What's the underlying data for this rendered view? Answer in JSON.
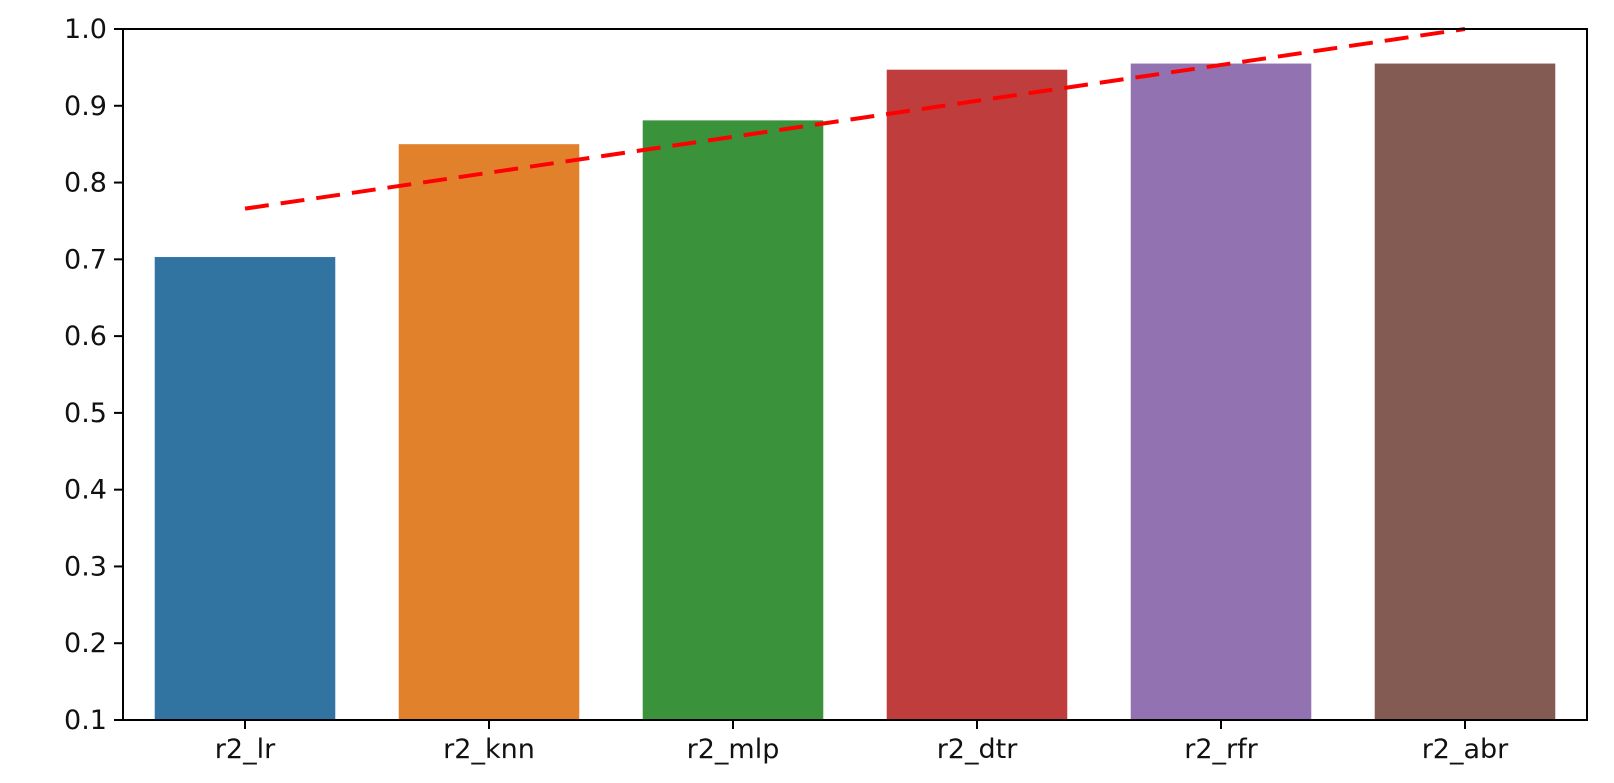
{
  "chart_data": {
    "type": "bar",
    "title": "",
    "xlabel": "",
    "ylabel": "",
    "categories": [
      "r2_lr",
      "r2_knn",
      "r2_mlp",
      "r2_dtr",
      "r2_rfr",
      "r2_abr"
    ],
    "values": [
      0.703,
      0.85,
      0.881,
      0.947,
      0.955,
      0.955
    ],
    "colors": [
      "#3274a1",
      "#e1812c",
      "#3a923a",
      "#c03d3e",
      "#9372b2",
      "#845b53"
    ],
    "ylim": [
      0.1,
      1.0
    ],
    "yticks": [
      "0.1",
      "0.2",
      "0.3",
      "0.4",
      "0.5",
      "0.6",
      "0.7",
      "0.8",
      "0.9",
      "1.0"
    ],
    "grid": false,
    "trend_line": {
      "style": "dashed",
      "color": "#ff0000",
      "start": {
        "category": "r2_lr",
        "value": 0.766
      },
      "end": {
        "category": "r2_abr",
        "value": 1.0
      }
    }
  }
}
